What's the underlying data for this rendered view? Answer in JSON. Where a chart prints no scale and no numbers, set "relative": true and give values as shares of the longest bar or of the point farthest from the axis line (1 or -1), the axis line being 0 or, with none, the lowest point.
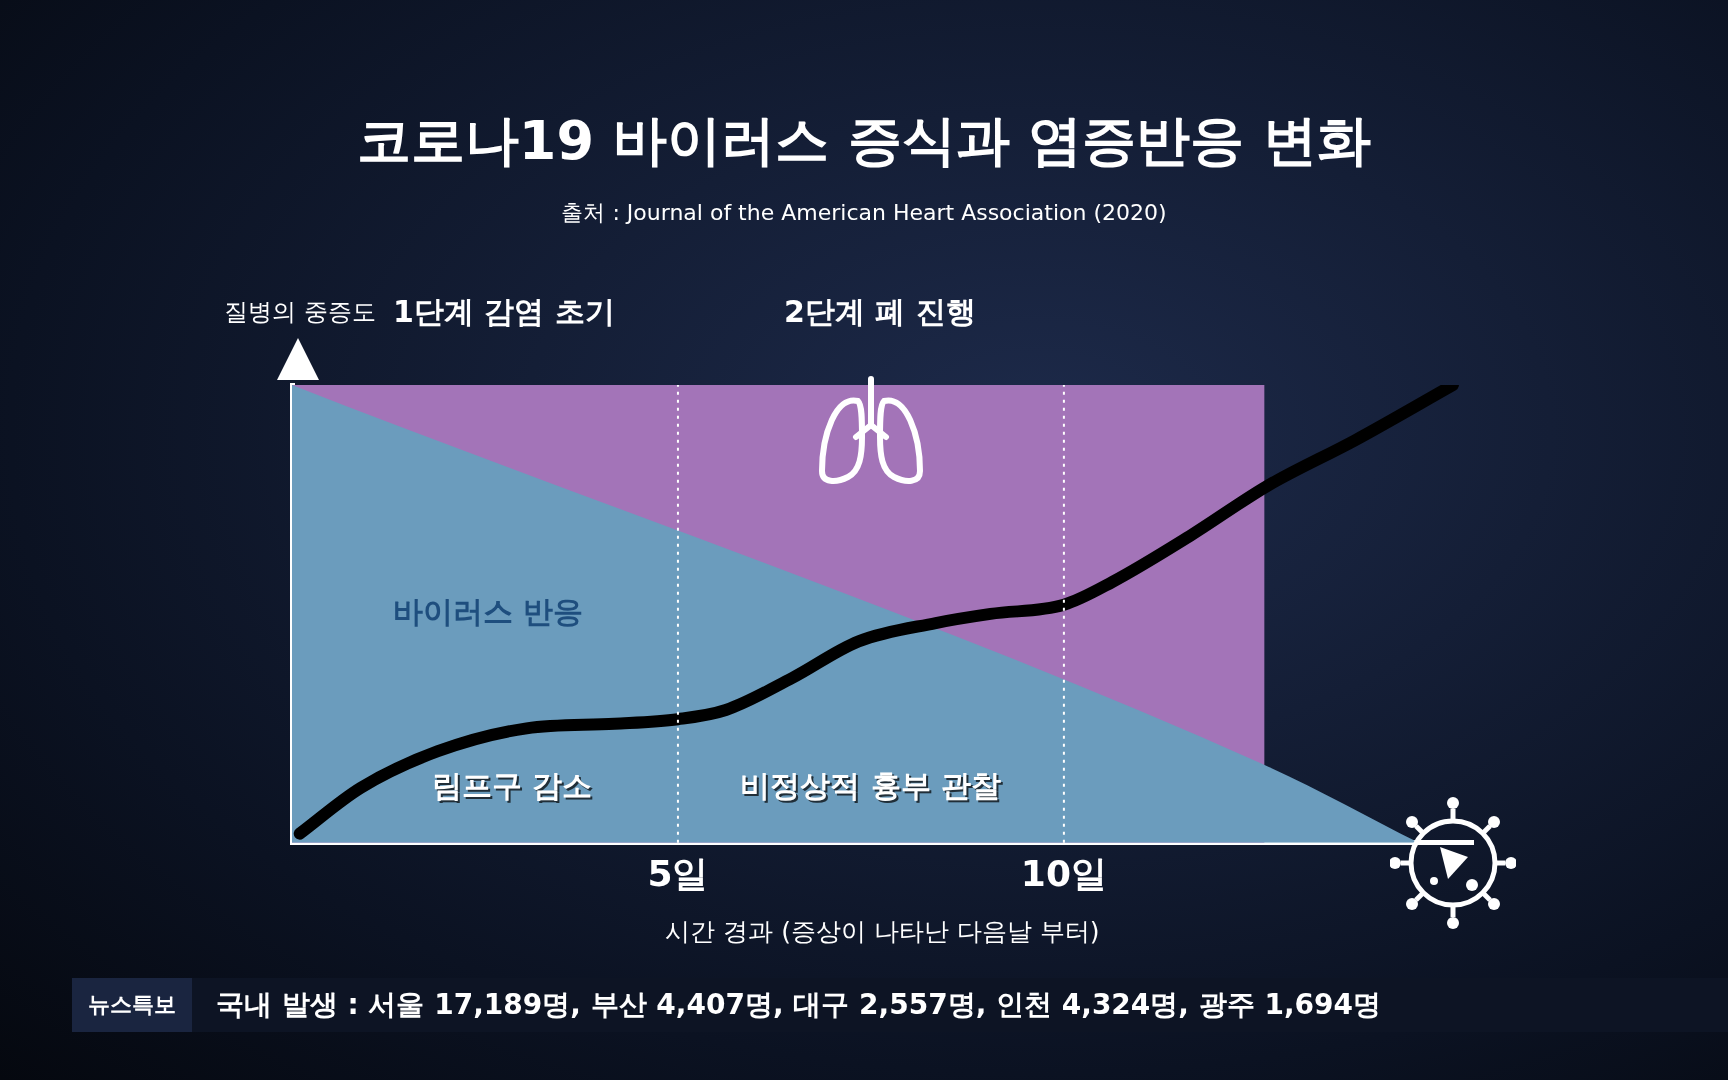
{
  "chart_data": {
    "type": "line",
    "title": "코로나19 바이러스 증식과 염증반응 변화",
    "subtitle": "출처 : Journal of the American Heart Association (2020)",
    "xlabel": "시간 경과 (증상이 나타난 다음날 부터)",
    "ylabel": "질병의 중증도",
    "relative": true,
    "xlim": [
      0,
      15.3
    ],
    "xticks": [
      {
        "value": 5,
        "label": "5일"
      },
      {
        "value": 10,
        "label": "10일"
      }
    ],
    "grid": false,
    "legend": false,
    "tick_labels": "x",
    "marker": "none",
    "series": [
      {
        "type": "area",
        "color": "#a374b8",
        "x": [
          0,
          12.6
        ],
        "values": [
          1,
          1
        ]
      },
      {
        "type": "area",
        "color": "#6b9cbd",
        "x": [
          0,
          12.6,
          14.6
        ],
        "values": [
          1,
          0.17,
          0
        ]
      },
      {
        "type": "line",
        "color": "#000000",
        "x": [
          0.1,
          0.89,
          1.89,
          3.04,
          4.18,
          5.0,
          5.62,
          6.48,
          7.34,
          8.34,
          9.05,
          10.0,
          10.63,
          11.63,
          12.64,
          13.78,
          15.04
        ],
        "values": [
          0.02,
          0.12,
          0.2,
          0.25,
          0.26,
          0.27,
          0.29,
          0.36,
          0.44,
          0.48,
          0.5,
          0.52,
          0.57,
          0.67,
          0.78,
          0.88,
          1.0
        ]
      }
    ],
    "ref_lines": [
      {
        "axis": "x",
        "value": 5,
        "line_style": "dotted",
        "color": "#ffffff"
      },
      {
        "axis": "x",
        "value": 10,
        "line_style": "dotted",
        "color": "#ffffff"
      }
    ],
    "annotations": [
      "바이러스 반응",
      "림프구 감소",
      "비정상적 흉부 관찰",
      "1단계 감염 초기",
      "2단계 폐 진행",
      "뉴스특보",
      "국내 발생 : 서울 17,189명, 부산 4,407명, 대구 2,557명, 인천 4,324명, 광주 1,694명"
    ]
  }
}
